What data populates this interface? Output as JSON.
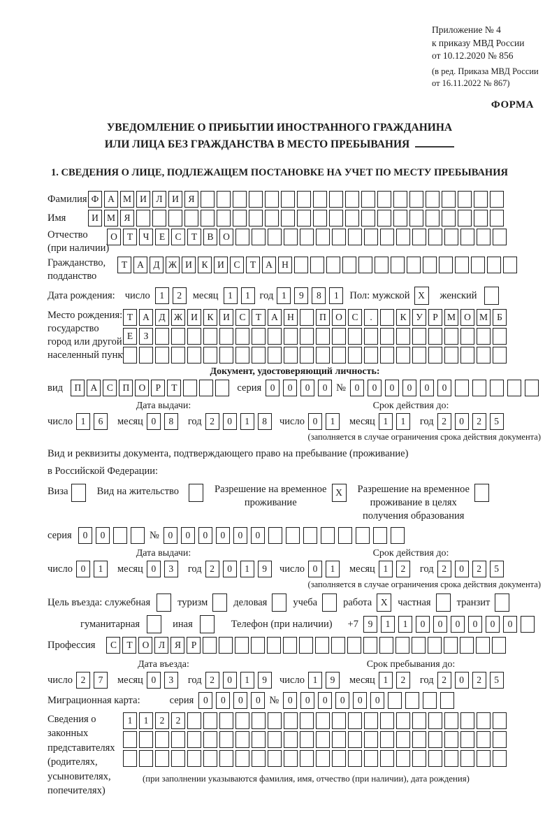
{
  "colors": {
    "ink": "#1c1c1c",
    "background": "#ffffff"
  },
  "header": {
    "appendix_line1": "Приложение № 4",
    "appendix_line2": "к приказу МВД России",
    "appendix_line3": "от 10.12.2020 № 856",
    "amendment_line1": "(в ред. Приказа МВД России",
    "amendment_line2": "от 16.11.2022 № 867)",
    "forma": "ФОРМА"
  },
  "title": {
    "line1": "УВЕДОМЛЕНИЕ О ПРИБЫТИИ ИНОСТРАННОГО ГРАЖДАНИНА",
    "line2": "ИЛИ ЛИЦА БЕЗ ГРАЖДАНСТВА В МЕСТО ПРЕБЫВАНИЯ",
    "section1": "1. СВЕДЕНИЯ О ЛИЦЕ, ПОДЛЕЖАЩЕМ ПОСТАНОВКЕ НА УЧЕТ ПО МЕСТУ ПРЕБЫВАНИЯ"
  },
  "labels": {
    "surname": "Фамилия",
    "name": "Имя",
    "patronymic": "Отчество",
    "patronymic_note": "(при наличии)",
    "citizenship1": "Гражданство,",
    "citizenship2": "подданство",
    "birthdate": "Дата рождения:",
    "day": "число",
    "month": "месяц",
    "year": "год",
    "sex": "Пол: мужской",
    "female": "женский",
    "birthplace1": "Место рождения:",
    "birthplace2": "государство",
    "birthplace3": "город или другой",
    "birthplace4": "населенный пункт",
    "identity_doc_heading": "Документ, удостоверяющий личность:",
    "vid": "вид",
    "seriya": "серия",
    "number_sign": "№",
    "issue_date": "Дата выдачи:",
    "valid_until": "Срок действия до:",
    "validity_note": "(заполняется в случае ограничения срока действия документа)",
    "residence_line1": "Вид и реквизиты документа, подтверждающего право на пребывание (проживание)",
    "residence_line2": "в Российской Федерации:",
    "visa": "Виза",
    "residence_permit": "Вид на жительство",
    "temp_res_line1": "Разрешение на временное",
    "temp_res_line2": "проживание",
    "temp_res_edu_line1": "Разрешение на временное",
    "temp_res_edu_line2": "проживание в целях",
    "temp_res_edu_line3": "получения образования",
    "purpose": "Цель въезда: служебная",
    "phone": "Телефон (при наличии)",
    "phone_prefix": "+7",
    "profession": "Профессия",
    "entry_date": "Дата въезда:",
    "stay_until": "Срок пребывания до:",
    "migration_card": "Миграционная карта:",
    "reps_lines": [
      "Сведения о",
      "законных",
      "представителях",
      "(родителях,",
      "усыновителях,",
      "попечителях)"
    ],
    "reps_note": "(при заполнении указываются фамилия, имя, отчество (при наличии), дата рождения)"
  },
  "purpose_row1": [
    {
      "label": "туризм",
      "mark": ""
    },
    {
      "label": "деловая",
      "mark": ""
    },
    {
      "label": "учеба",
      "mark": ""
    },
    {
      "label": "работа",
      "mark": "X"
    },
    {
      "label": "частная",
      "mark": ""
    },
    {
      "label": "транзит",
      "mark": ""
    }
  ],
  "purpose_row2": [
    {
      "label": "гуманитарная",
      "mark": ""
    },
    {
      "label": "иная",
      "mark": ""
    }
  ],
  "values": {
    "purpose_first_mark": "",
    "surname": {
      "text": "ФАМИЛИЯ",
      "total": 26
    },
    "name": {
      "text": "ИМЯ",
      "total": 26
    },
    "patronymic": {
      "text": "ОТЧЕСТВО",
      "total": 25
    },
    "citizenship": {
      "text": "ТАДЖИКИСТАН",
      "total": 25
    },
    "birth_day": {
      "text": "12",
      "total": 2
    },
    "birth_month": {
      "text": "11",
      "total": 2
    },
    "birth_year": {
      "text": "1981",
      "total": 4
    },
    "sex_male_mark": "X",
    "sex_female_mark": "",
    "birthplace_row1": {
      "text": "ТАДЖИКИСТАН ПОС. КУРМОМБ",
      "total": 24
    },
    "birthplace_row2": {
      "text": "ЕЗ",
      "total": 24
    },
    "birthplace_row3": {
      "text": "",
      "total": 24
    },
    "doc_vid": {
      "text": "ПАСПОРТ",
      "total": 10
    },
    "doc_seriya": {
      "text": "0000",
      "total": 4
    },
    "doc_number": {
      "text": "000000",
      "total": 11
    },
    "doc_issue_day": {
      "text": "16",
      "total": 2
    },
    "doc_issue_month": {
      "text": "08",
      "total": 2
    },
    "doc_issue_year": {
      "text": "2018",
      "total": 4
    },
    "doc_valid_day": {
      "text": "01",
      "total": 2
    },
    "doc_valid_month": {
      "text": "11",
      "total": 2
    },
    "doc_valid_year": {
      "text": "2025",
      "total": 4
    },
    "visa_mark": "",
    "residence_permit_mark": "",
    "temp_res_mark": "X",
    "temp_res_edu_mark": "",
    "rvp_seriya": {
      "text": "00",
      "total": 4
    },
    "rvp_number": {
      "text": "000000",
      "total": 14
    },
    "rvp_issue_day": {
      "text": "01",
      "total": 2
    },
    "rvp_issue_month": {
      "text": "03",
      "total": 2
    },
    "rvp_issue_year": {
      "text": "2019",
      "total": 4
    },
    "rvp_valid_day": {
      "text": "01",
      "total": 2
    },
    "rvp_valid_month": {
      "text": "12",
      "total": 2
    },
    "rvp_valid_year": {
      "text": "2025",
      "total": 4
    },
    "phone": {
      "text": "911000000",
      "total": 10
    },
    "profession": {
      "text": "СТОЛЯР",
      "total": 25
    },
    "entry_day": {
      "text": "27",
      "total": 2
    },
    "entry_month": {
      "text": "03",
      "total": 2
    },
    "entry_year": {
      "text": "2019",
      "total": 4
    },
    "stay_day": {
      "text": "19",
      "total": 2
    },
    "stay_month": {
      "text": "12",
      "total": 2
    },
    "stay_year": {
      "text": "2025",
      "total": 4
    },
    "mig_seriya": {
      "text": "0000",
      "total": 4
    },
    "mig_number": {
      "text": "000000",
      "total": 10
    },
    "reps_row1": {
      "text": "1122",
      "total": 24
    },
    "reps_row2": {
      "text": "",
      "total": 24
    },
    "reps_row3": {
      "text": "",
      "total": 24
    }
  }
}
